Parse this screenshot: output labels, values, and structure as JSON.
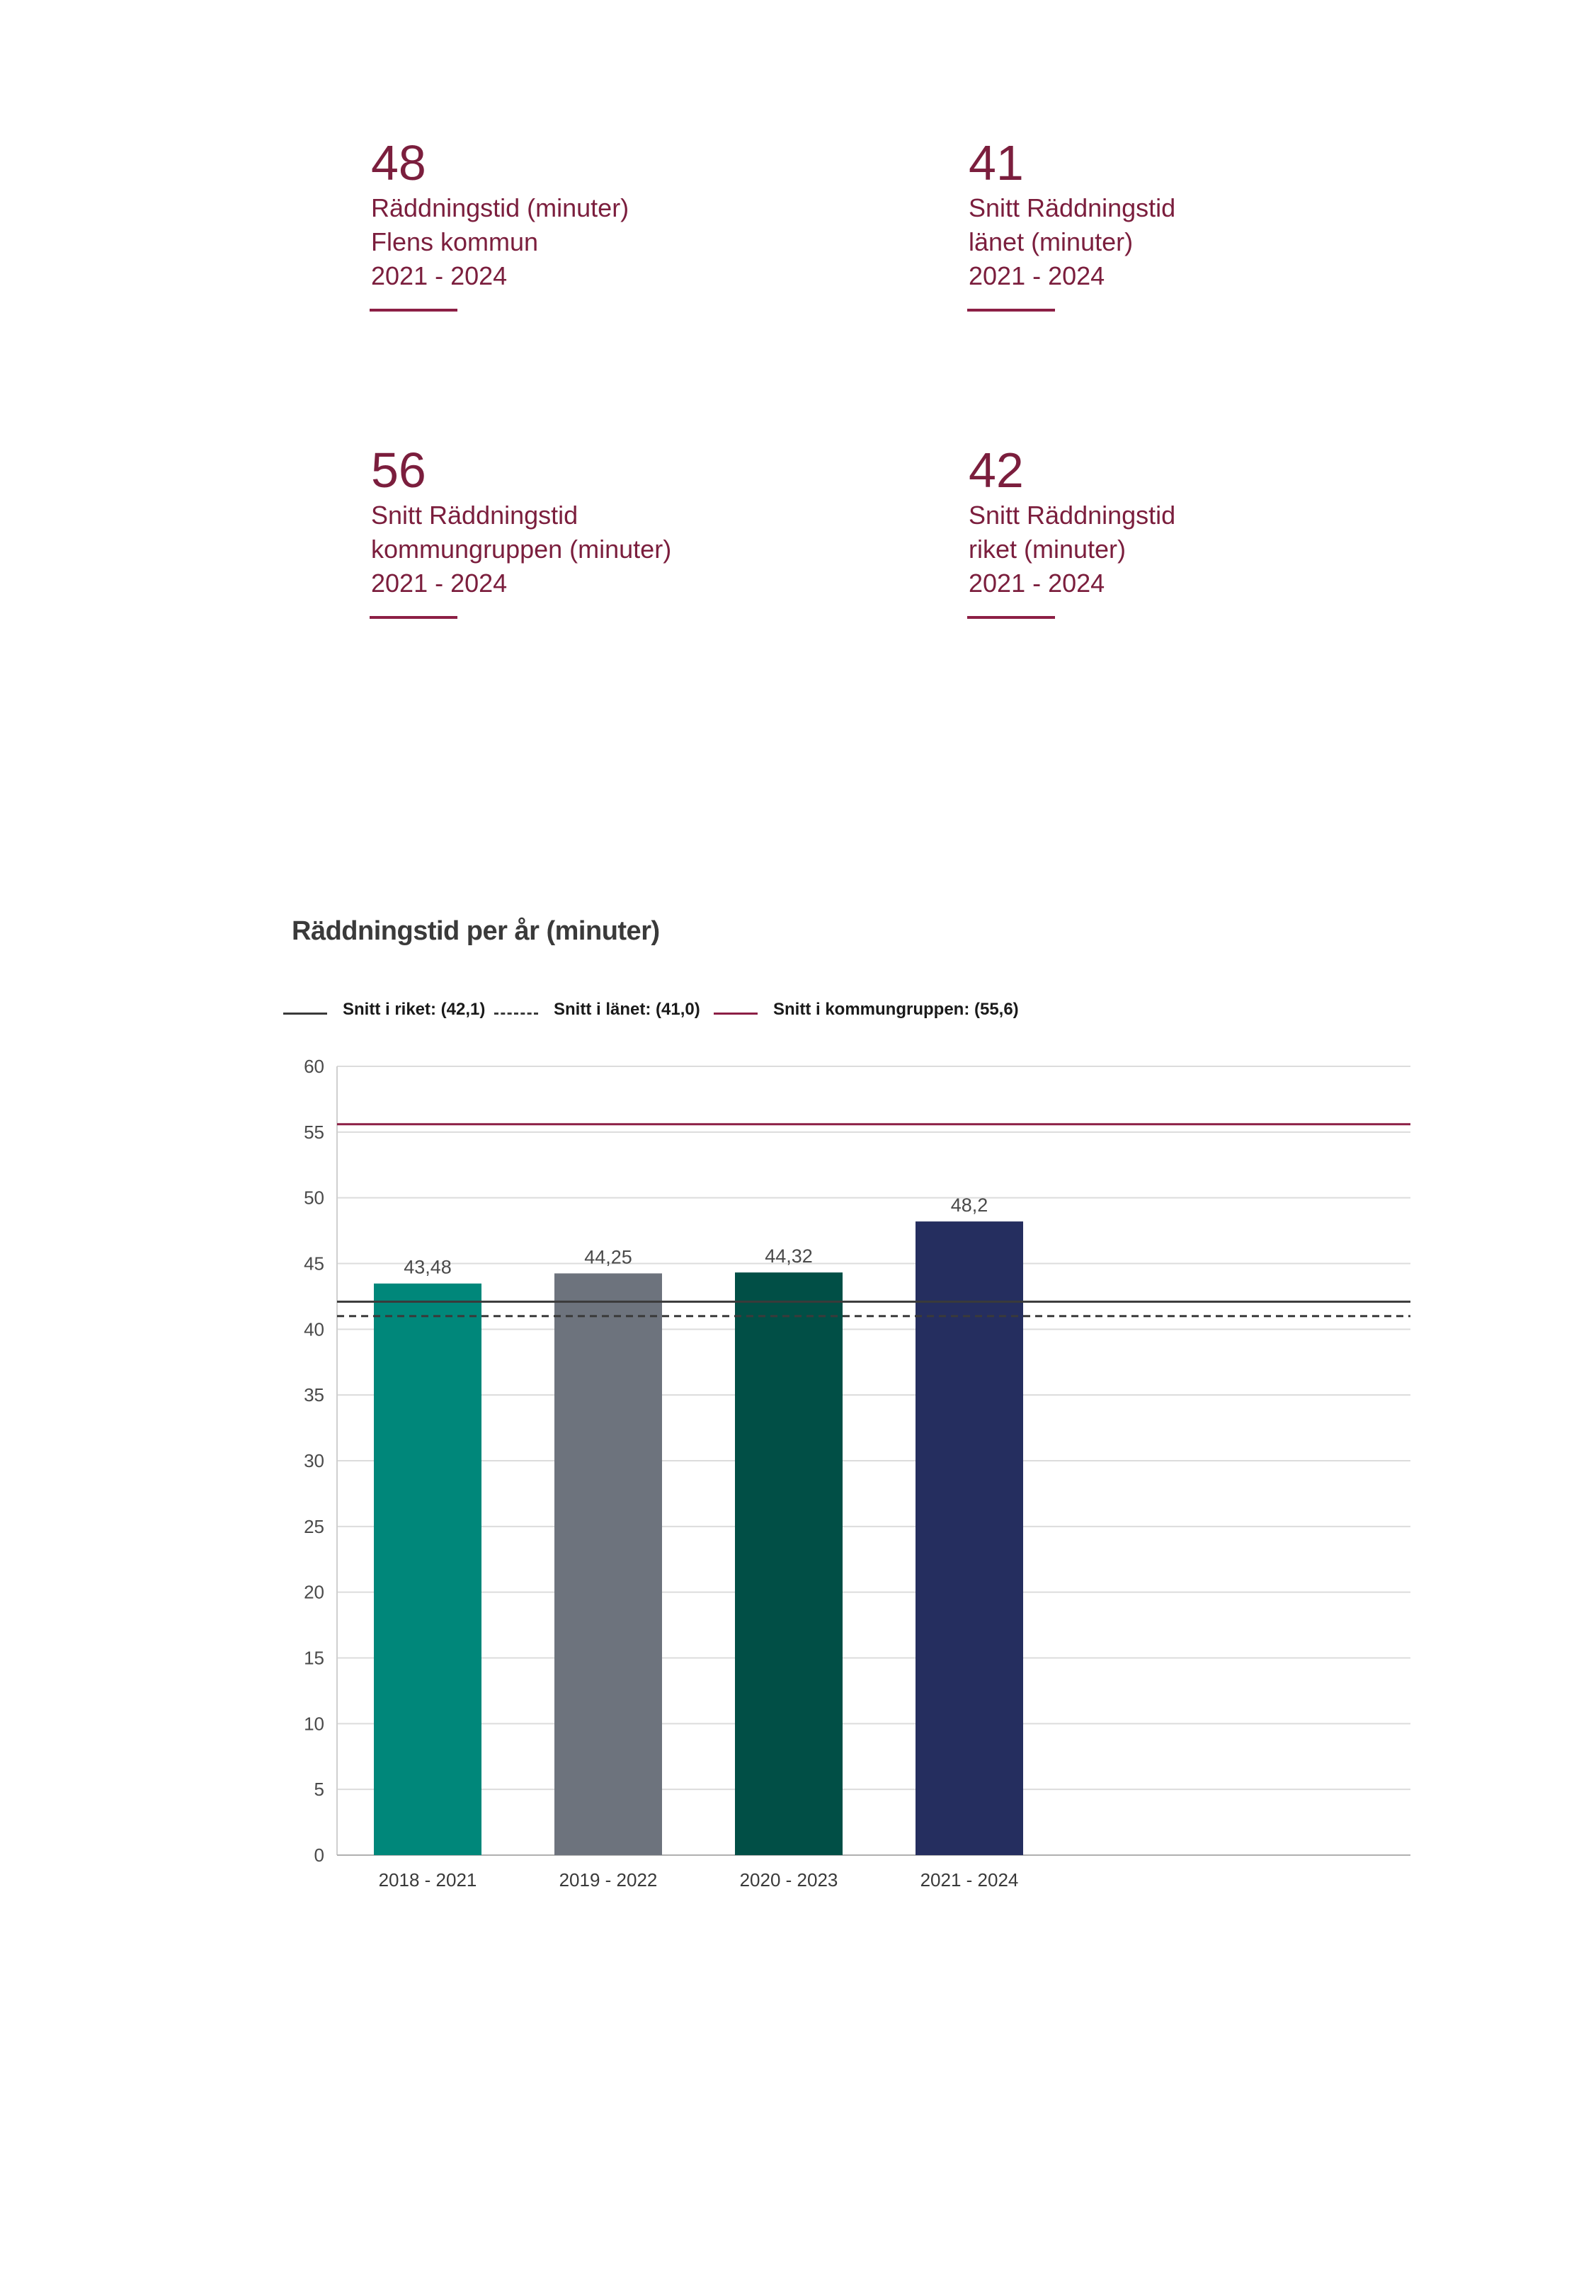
{
  "stats": [
    {
      "value": "48",
      "lines": [
        "Räddningstid (minuter)",
        "Flens kommun",
        "2021 - 2024"
      ]
    },
    {
      "value": "41",
      "lines": [
        "Snitt Räddningstid",
        "länet (minuter)",
        "2021 - 2024"
      ]
    },
    {
      "value": "56",
      "lines": [
        "Snitt Räddningstid",
        "kommungruppen (minuter)",
        "2021 - 2024"
      ]
    },
    {
      "value": "42",
      "lines": [
        "Snitt Räddningstid",
        "riket (minuter)",
        "2021 - 2024"
      ]
    }
  ],
  "chart_data": {
    "type": "bar",
    "title": "Räddningstid per år (minuter)",
    "categories": [
      "2018 - 2021",
      "2019 - 2022",
      "2020 - 2023",
      "2021 - 2024"
    ],
    "values": [
      43.48,
      44.25,
      44.32,
      48.2
    ],
    "value_labels": [
      "43,48",
      "44,25",
      "44,32",
      "48,2"
    ],
    "bar_colors": [
      "#00877a",
      "#6d737d",
      "#014f46",
      "#252e5f"
    ],
    "xlabel": "",
    "ylabel": "",
    "ylim": [
      0,
      60
    ],
    "yticks": [
      0,
      5,
      10,
      15,
      20,
      25,
      30,
      35,
      40,
      45,
      50,
      55,
      60
    ],
    "grid": true,
    "legend_position": "top-left",
    "reference_lines": [
      {
        "name": "Snitt i riket: (42,1)",
        "value": 42.1,
        "color": "#3a3a3a",
        "style": "solid"
      },
      {
        "name": "Snitt i länet: (41,0)",
        "value": 41.0,
        "color": "#3a3a3a",
        "style": "dashed"
      },
      {
        "name": "Snitt i kommungruppen: (55,6)",
        "value": 55.6,
        "color": "#8c1f45",
        "style": "solid"
      }
    ]
  }
}
